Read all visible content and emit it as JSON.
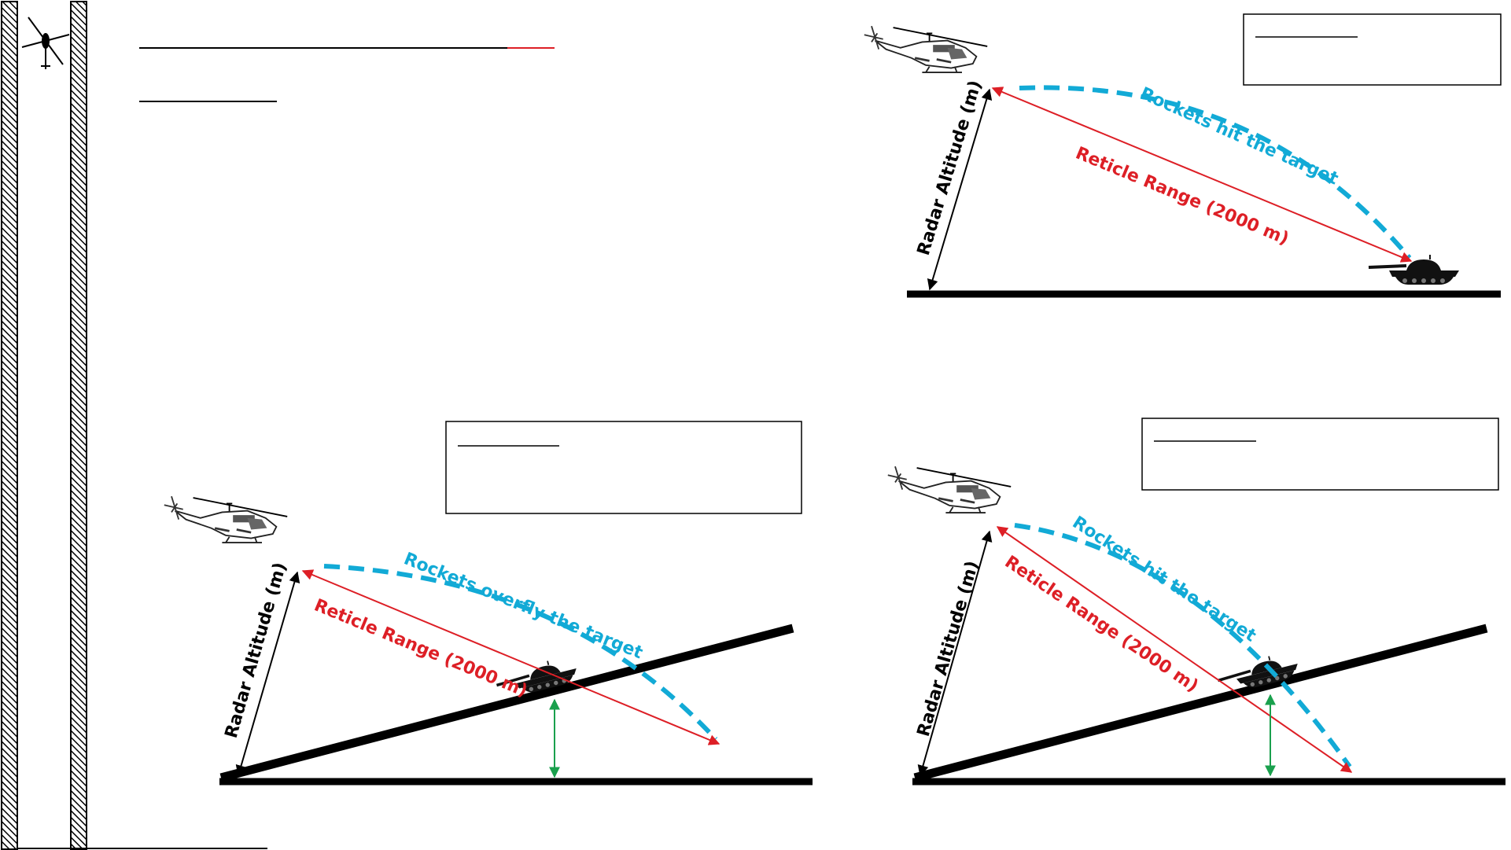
{
  "colors": {
    "accent_red": "#dd1f26",
    "accent_blue": "#12aad6",
    "green": "#1aa04d",
    "ink": "#000000",
    "rule": "#000000"
  },
  "icons": [
    "helicopter-icon",
    "tank-icon"
  ],
  "panels": {
    "top_right": {
      "trajectory_label": "Rockets hit the target",
      "range_label": "Reticle Range (2000 m)",
      "altitude_label": "Radar Altitude (m)"
    },
    "bottom_left": {
      "trajectory_label": "Rockets overfly the target",
      "range_label": "Reticle Range (2000 m)",
      "altitude_label": "Radar Altitude (m)"
    },
    "bottom_right": {
      "trajectory_label": "Rockets hit the target",
      "range_label": "Reticle Range (2000 m)",
      "altitude_label": "Radar Altitude (m)"
    }
  }
}
